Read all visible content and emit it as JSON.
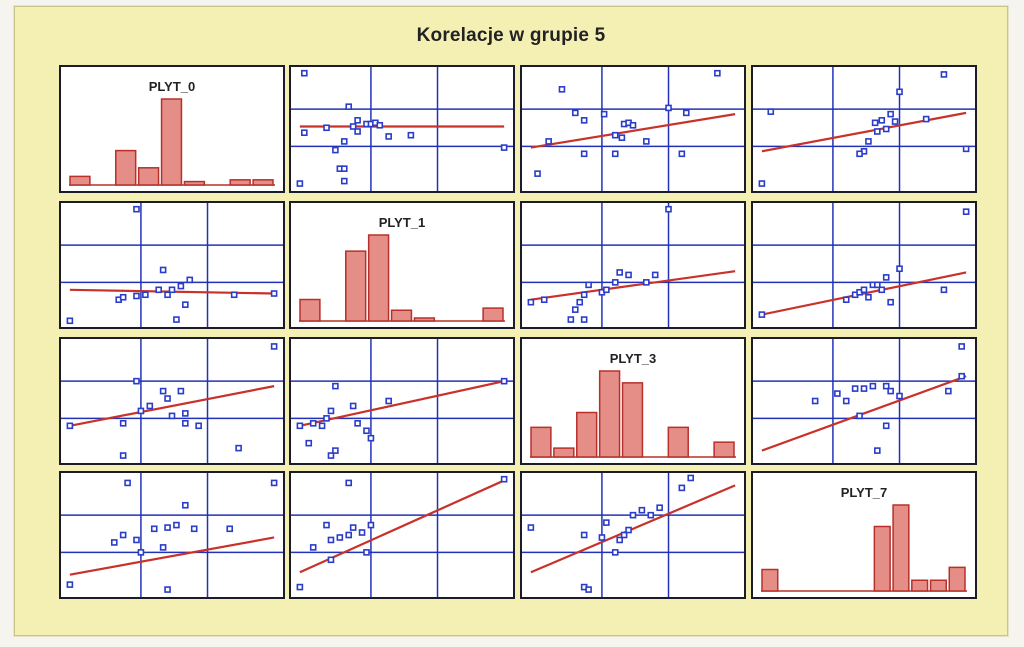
{
  "title": "Korelacje w grupie 5",
  "colors": {
    "panel_background": "#f4f0b4",
    "grid_line": "#2232b8",
    "point": "#2a3cc8",
    "fit_line": "#c8322a",
    "histogram_bar": "#e58e88",
    "histogram_bar_edge": "#b8302a"
  },
  "chart_data": {
    "type": "scatter",
    "subtype": "scatterplot matrix",
    "variables": [
      "PLYT_0",
      "PLYT_1",
      "PLYT_3",
      "PLYT_7"
    ],
    "grid": true,
    "diagonal": {
      "type": "histogram",
      "histograms": [
        {
          "variable": "PLYT_0",
          "counts": [
            1,
            0,
            4,
            2,
            10,
            0.4,
            0,
            0.6,
            0.6
          ]
        },
        {
          "variable": "PLYT_1",
          "counts": [
            2,
            0,
            6.5,
            8,
            1,
            0.2,
            0,
            0,
            1.2
          ]
        },
        {
          "variable": "PLYT_3",
          "counts": [
            2,
            0.6,
            3,
            5.8,
            5,
            0,
            2,
            0,
            1
          ]
        },
        {
          "variable": "PLYT_7",
          "counts": [
            2,
            0,
            0,
            0,
            0,
            0,
            6,
            8,
            1,
            1,
            2.2
          ]
        }
      ]
    },
    "cells": [
      {
        "row": 0,
        "col": 1,
        "trend": [
          0.52,
          0.52
        ],
        "points": [
          [
            0.06,
            0.95
          ],
          [
            0.06,
            0.47
          ],
          [
            0.16,
            0.51
          ],
          [
            0.2,
            0.33
          ],
          [
            0.24,
            0.4
          ],
          [
            0.28,
            0.52
          ],
          [
            0.3,
            0.57
          ],
          [
            0.3,
            0.48
          ],
          [
            0.34,
            0.54
          ],
          [
            0.36,
            0.54
          ],
          [
            0.38,
            0.55
          ],
          [
            0.4,
            0.53
          ],
          [
            0.22,
            0.18
          ],
          [
            0.24,
            0.18
          ],
          [
            0.26,
            0.68
          ],
          [
            0.96,
            0.35
          ],
          [
            0.24,
            0.08
          ],
          [
            0.04,
            0.06
          ],
          [
            0.44,
            0.44
          ],
          [
            0.54,
            0.45
          ]
        ]
      },
      {
        "row": 0,
        "col": 2,
        "trend": [
          0.35,
          0.62
        ],
        "points": [
          [
            0.07,
            0.14
          ],
          [
            0.24,
            0.63
          ],
          [
            0.28,
            0.57
          ],
          [
            0.37,
            0.62
          ],
          [
            0.42,
            0.45
          ],
          [
            0.46,
            0.54
          ],
          [
            0.48,
            0.55
          ],
          [
            0.5,
            0.53
          ],
          [
            0.45,
            0.43
          ],
          [
            0.56,
            0.4
          ],
          [
            0.66,
            0.67
          ],
          [
            0.74,
            0.63
          ],
          [
            0.72,
            0.3
          ],
          [
            0.88,
            0.95
          ],
          [
            0.18,
            0.82
          ],
          [
            0.28,
            0.3
          ],
          [
            0.12,
            0.4
          ],
          [
            0.42,
            0.3
          ]
        ]
      },
      {
        "row": 0,
        "col": 3,
        "trend": [
          0.32,
          0.63
        ],
        "points": [
          [
            0.08,
            0.64
          ],
          [
            0.04,
            0.06
          ],
          [
            0.5,
            0.32
          ],
          [
            0.52,
            0.4
          ],
          [
            0.55,
            0.55
          ],
          [
            0.58,
            0.57
          ],
          [
            0.62,
            0.62
          ],
          [
            0.6,
            0.5
          ],
          [
            0.64,
            0.56
          ],
          [
            0.66,
            0.8
          ],
          [
            0.78,
            0.58
          ],
          [
            0.86,
            0.94
          ],
          [
            0.96,
            0.34
          ],
          [
            0.48,
            0.3
          ],
          [
            0.56,
            0.48
          ]
        ]
      },
      {
        "row": 1,
        "col": 0,
        "trend": [
          0.3,
          0.27
        ],
        "points": [
          [
            0.34,
            0.95
          ],
          [
            0.26,
            0.22
          ],
          [
            0.28,
            0.24
          ],
          [
            0.34,
            0.25
          ],
          [
            0.38,
            0.26
          ],
          [
            0.44,
            0.3
          ],
          [
            0.48,
            0.26
          ],
          [
            0.5,
            0.3
          ],
          [
            0.46,
            0.46
          ],
          [
            0.54,
            0.33
          ],
          [
            0.56,
            0.18
          ],
          [
            0.52,
            0.06
          ],
          [
            0.78,
            0.26
          ],
          [
            0.96,
            0.27
          ],
          [
            0.04,
            0.05
          ],
          [
            0.58,
            0.38
          ]
        ]
      },
      {
        "row": 1,
        "col": 2,
        "trend": [
          0.22,
          0.45
        ],
        "points": [
          [
            0.04,
            0.2
          ],
          [
            0.1,
            0.22
          ],
          [
            0.24,
            0.14
          ],
          [
            0.26,
            0.2
          ],
          [
            0.28,
            0.26
          ],
          [
            0.3,
            0.34
          ],
          [
            0.36,
            0.28
          ],
          [
            0.38,
            0.3
          ],
          [
            0.42,
            0.36
          ],
          [
            0.44,
            0.44
          ],
          [
            0.48,
            0.42
          ],
          [
            0.66,
            0.95
          ],
          [
            0.56,
            0.36
          ],
          [
            0.6,
            0.42
          ],
          [
            0.28,
            0.06
          ],
          [
            0.22,
            0.06
          ]
        ]
      },
      {
        "row": 1,
        "col": 3,
        "trend": [
          0.1,
          0.44
        ],
        "points": [
          [
            0.04,
            0.1
          ],
          [
            0.42,
            0.22
          ],
          [
            0.46,
            0.26
          ],
          [
            0.48,
            0.28
          ],
          [
            0.5,
            0.3
          ],
          [
            0.52,
            0.24
          ],
          [
            0.54,
            0.34
          ],
          [
            0.56,
            0.34
          ],
          [
            0.58,
            0.3
          ],
          [
            0.62,
            0.2
          ],
          [
            0.66,
            0.47
          ],
          [
            0.86,
            0.3
          ],
          [
            0.96,
            0.93
          ],
          [
            0.6,
            0.4
          ]
        ]
      },
      {
        "row": 2,
        "col": 0,
        "trend": [
          0.3,
          0.62
        ],
        "points": [
          [
            0.04,
            0.3
          ],
          [
            0.28,
            0.32
          ],
          [
            0.34,
            0.66
          ],
          [
            0.36,
            0.42
          ],
          [
            0.4,
            0.46
          ],
          [
            0.46,
            0.58
          ],
          [
            0.48,
            0.52
          ],
          [
            0.5,
            0.38
          ],
          [
            0.54,
            0.58
          ],
          [
            0.56,
            0.32
          ],
          [
            0.62,
            0.3
          ],
          [
            0.28,
            0.06
          ],
          [
            0.8,
            0.12
          ],
          [
            0.96,
            0.94
          ],
          [
            0.56,
            0.4
          ]
        ]
      },
      {
        "row": 2,
        "col": 1,
        "trend": [
          0.3,
          0.66
        ],
        "points": [
          [
            0.04,
            0.3
          ],
          [
            0.08,
            0.16
          ],
          [
            0.1,
            0.32
          ],
          [
            0.14,
            0.3
          ],
          [
            0.16,
            0.36
          ],
          [
            0.18,
            0.42
          ],
          [
            0.2,
            0.62
          ],
          [
            0.28,
            0.46
          ],
          [
            0.3,
            0.32
          ],
          [
            0.34,
            0.26
          ],
          [
            0.36,
            0.2
          ],
          [
            0.44,
            0.5
          ],
          [
            0.18,
            0.06
          ],
          [
            0.96,
            0.66
          ],
          [
            0.2,
            0.1
          ]
        ]
      },
      {
        "row": 2,
        "col": 3,
        "trend": [
          0.1,
          0.7
        ],
        "points": [
          [
            0.28,
            0.5
          ],
          [
            0.38,
            0.56
          ],
          [
            0.42,
            0.5
          ],
          [
            0.46,
            0.6
          ],
          [
            0.5,
            0.6
          ],
          [
            0.54,
            0.62
          ],
          [
            0.6,
            0.62
          ],
          [
            0.62,
            0.58
          ],
          [
            0.66,
            0.54
          ],
          [
            0.48,
            0.38
          ],
          [
            0.6,
            0.3
          ],
          [
            0.56,
            0.1
          ],
          [
            0.94,
            0.94
          ],
          [
            0.94,
            0.7
          ],
          [
            0.88,
            0.58
          ]
        ]
      },
      {
        "row": 3,
        "col": 0,
        "trend": [
          0.18,
          0.48
        ],
        "points": [
          [
            0.04,
            0.1
          ],
          [
            0.24,
            0.44
          ],
          [
            0.28,
            0.5
          ],
          [
            0.34,
            0.46
          ],
          [
            0.36,
            0.36
          ],
          [
            0.42,
            0.55
          ],
          [
            0.46,
            0.4
          ],
          [
            0.48,
            0.56
          ],
          [
            0.52,
            0.58
          ],
          [
            0.56,
            0.74
          ],
          [
            0.6,
            0.55
          ],
          [
            0.76,
            0.55
          ],
          [
            0.96,
            0.92
          ],
          [
            0.3,
            0.92
          ],
          [
            0.48,
            0.06
          ]
        ]
      },
      {
        "row": 3,
        "col": 1,
        "trend": [
          0.2,
          0.94
        ],
        "points": [
          [
            0.04,
            0.08
          ],
          [
            0.1,
            0.4
          ],
          [
            0.16,
            0.58
          ],
          [
            0.18,
            0.46
          ],
          [
            0.22,
            0.48
          ],
          [
            0.26,
            0.5
          ],
          [
            0.28,
            0.56
          ],
          [
            0.32,
            0.52
          ],
          [
            0.36,
            0.58
          ],
          [
            0.26,
            0.92
          ],
          [
            0.96,
            0.95
          ],
          [
            0.34,
            0.36
          ],
          [
            0.18,
            0.3
          ]
        ]
      },
      {
        "row": 3,
        "col": 2,
        "trend": [
          0.2,
          0.9
        ],
        "points": [
          [
            0.04,
            0.56
          ],
          [
            0.28,
            0.5
          ],
          [
            0.36,
            0.48
          ],
          [
            0.38,
            0.6
          ],
          [
            0.42,
            0.36
          ],
          [
            0.44,
            0.46
          ],
          [
            0.46,
            0.5
          ],
          [
            0.48,
            0.54
          ],
          [
            0.5,
            0.66
          ],
          [
            0.54,
            0.7
          ],
          [
            0.58,
            0.66
          ],
          [
            0.62,
            0.72
          ],
          [
            0.72,
            0.88
          ],
          [
            0.76,
            0.96
          ],
          [
            0.28,
            0.08
          ],
          [
            0.3,
            0.06
          ]
        ]
      }
    ]
  }
}
